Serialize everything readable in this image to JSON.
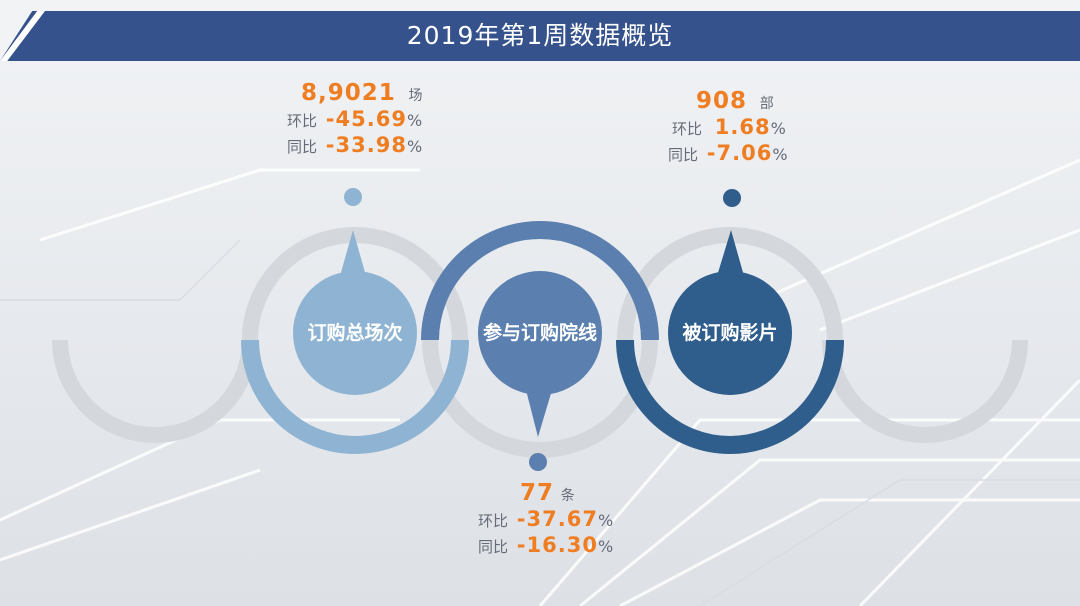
{
  "header": {
    "title": "2019年第1周数据概览"
  },
  "circles": [
    {
      "label": "订购总场次",
      "color": "#8fb4d3"
    },
    {
      "label": "参与订购院线",
      "color": "#5b7fae"
    },
    {
      "label": "被订购影片",
      "color": "#2f5d8c"
    }
  ],
  "stats": {
    "sessions": {
      "value": "8,9021",
      "unit": "场",
      "mom_label": "环比",
      "mom": "-45.69",
      "yoy_label": "同比",
      "yoy": "-33.98",
      "pct": "%"
    },
    "chains": {
      "value": "77",
      "unit": "条",
      "mom_label": "环比",
      "mom": "-37.67",
      "yoy_label": "同比",
      "yoy": "-16.30",
      "pct": "%"
    },
    "films": {
      "value": "908",
      "unit": "部",
      "mom_label": "环比",
      "mom": "1.68",
      "yoy_label": "同比",
      "yoy": "-7.06",
      "pct": "%"
    }
  },
  "colors": {
    "accent": "#ef7d22",
    "band": "#35528d",
    "muted_ring": "#d4d7dc",
    "text": "#666b78"
  }
}
